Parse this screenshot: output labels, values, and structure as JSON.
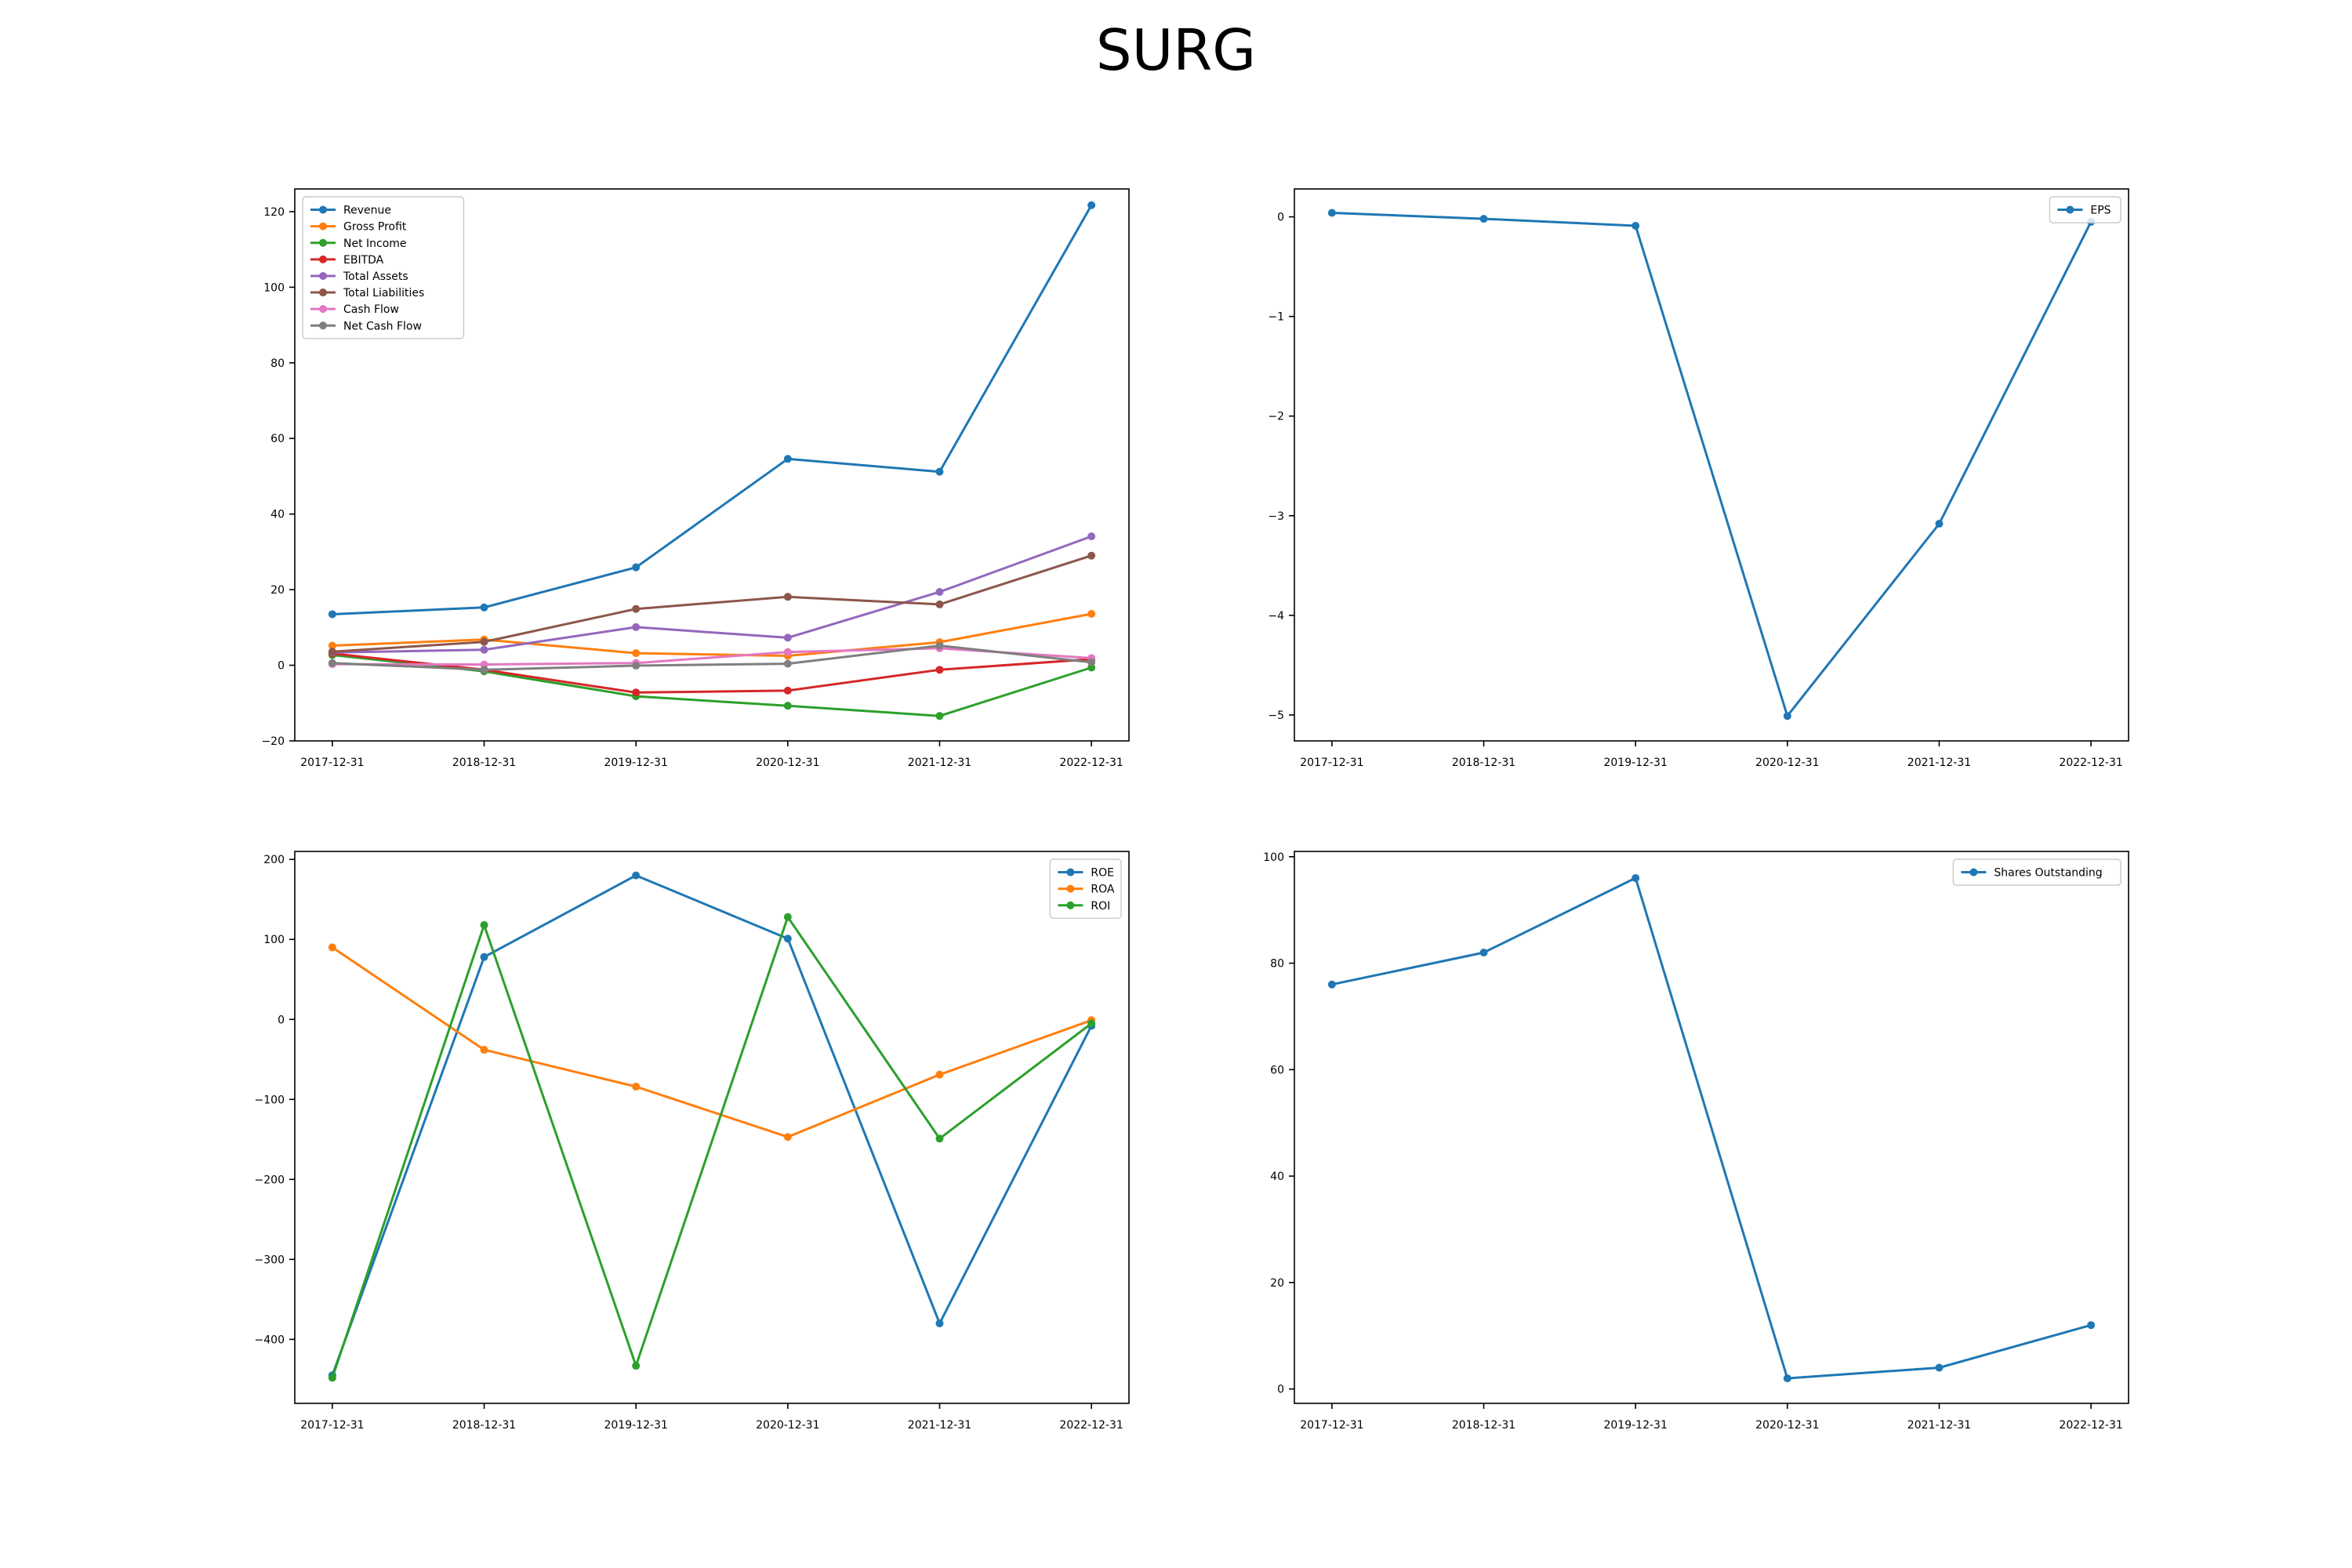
{
  "figure": {
    "title": "SURG"
  },
  "chart_data": [
    {
      "type": "line",
      "x": [
        "2017-12-31",
        "2018-12-31",
        "2019-12-31",
        "2020-12-31",
        "2021-12-31",
        "2022-12-31"
      ],
      "ylim": [
        -20,
        126
      ],
      "yticks": [
        -20,
        0,
        20,
        40,
        60,
        80,
        100,
        120
      ],
      "legend": "top-left",
      "grid": false,
      "series": [
        {
          "name": "Revenue",
          "color": "#1f77b4",
          "values": [
            13.5,
            15.3,
            25.9,
            54.6,
            51.2,
            121.7
          ]
        },
        {
          "name": "Gross Profit",
          "color": "#ff7f0e",
          "values": [
            5.2,
            6.8,
            3.2,
            2.5,
            6.1,
            13.6
          ]
        },
        {
          "name": "Net Income",
          "color": "#2ca02c",
          "values": [
            2.7,
            -1.6,
            -8.2,
            -10.7,
            -13.4,
            -0.6
          ]
        },
        {
          "name": "EBITDA",
          "color": "#d62728",
          "values": [
            3.1,
            -1.2,
            -7.2,
            -6.7,
            -1.2,
            1.6
          ]
        },
        {
          "name": "Total Assets",
          "color": "#9467bd",
          "values": [
            3.4,
            4.1,
            10.1,
            7.3,
            19.4,
            34.1
          ]
        },
        {
          "name": "Total Liabilities",
          "color": "#8c564b",
          "values": [
            3.6,
            6.2,
            14.9,
            18.1,
            16.1,
            29.0
          ]
        },
        {
          "name": "Cash Flow",
          "color": "#e377c2",
          "values": [
            0.3,
            0.2,
            0.6,
            3.5,
            4.5,
            1.9
          ]
        },
        {
          "name": "Net Cash Flow",
          "color": "#7f7f7f",
          "values": [
            0.6,
            -1.2,
            -0.1,
            0.4,
            5.2,
            0.8
          ]
        }
      ]
    },
    {
      "type": "line",
      "x": [
        "2017-12-31",
        "2018-12-31",
        "2019-12-31",
        "2020-12-31",
        "2021-12-31",
        "2022-12-31"
      ],
      "ylim": [
        -5.26,
        0.28
      ],
      "yticks": [
        -5,
        -4,
        -3,
        -2,
        -1,
        0
      ],
      "legend": "top-right",
      "grid": false,
      "series": [
        {
          "name": "EPS",
          "color": "#1f77b4",
          "values": [
            0.04,
            -0.02,
            -0.09,
            -5.01,
            -3.08,
            -0.05
          ]
        }
      ]
    },
    {
      "type": "line",
      "x": [
        "2017-12-31",
        "2018-12-31",
        "2019-12-31",
        "2020-12-31",
        "2021-12-31",
        "2022-12-31"
      ],
      "ylim": [
        -480,
        210
      ],
      "yticks": [
        -400,
        -300,
        -200,
        -100,
        0,
        100,
        200
      ],
      "legend": "top-right",
      "grid": false,
      "series": [
        {
          "name": "ROE",
          "color": "#1f77b4",
          "values": [
            -445,
            78,
            180,
            101,
            -380,
            -8
          ]
        },
        {
          "name": "ROA",
          "color": "#ff7f0e",
          "values": [
            90,
            -38,
            -84,
            -147,
            -69,
            -1
          ]
        },
        {
          "name": "ROI",
          "color": "#2ca02c",
          "values": [
            -448,
            118,
            -433,
            128,
            -149,
            -5
          ]
        }
      ]
    },
    {
      "type": "line",
      "x": [
        "2017-12-31",
        "2018-12-31",
        "2019-12-31",
        "2020-12-31",
        "2021-12-31",
        "2022-12-31"
      ],
      "ylim": [
        -2.7,
        101
      ],
      "yticks": [
        0,
        20,
        40,
        60,
        80,
        100
      ],
      "legend": "top-right",
      "grid": false,
      "series": [
        {
          "name": "Shares Outstanding",
          "color": "#1f77b4",
          "values": [
            76,
            82,
            96,
            2,
            4,
            12
          ]
        }
      ]
    }
  ]
}
